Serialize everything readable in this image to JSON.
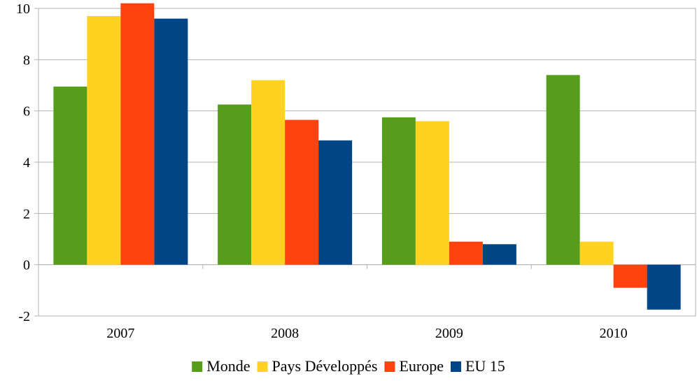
{
  "chart_data": {
    "type": "bar",
    "categories": [
      "2007",
      "2008",
      "2009",
      "2010"
    ],
    "series": [
      {
        "name": "Monde",
        "color": "#579D1C",
        "values": [
          6.95,
          6.25,
          5.75,
          7.4
        ]
      },
      {
        "name": "Pays Développés",
        "color": "#FFD320",
        "values": [
          9.7,
          7.2,
          5.6,
          0.9
        ]
      },
      {
        "name": "Europe",
        "color": "#FF420E",
        "values": [
          10.2,
          5.65,
          0.9,
          -0.9
        ]
      },
      {
        "name": "EU 15",
        "color": "#004586",
        "values": [
          9.6,
          4.85,
          0.8,
          -1.75
        ]
      }
    ],
    "ylim": [
      -2,
      10
    ],
    "yticks": [
      "-2",
      "0",
      "2",
      "4",
      "6",
      "8",
      "10"
    ],
    "grid": true,
    "legend_position": "bottom",
    "title": "",
    "xlabel": "",
    "ylabel": ""
  }
}
